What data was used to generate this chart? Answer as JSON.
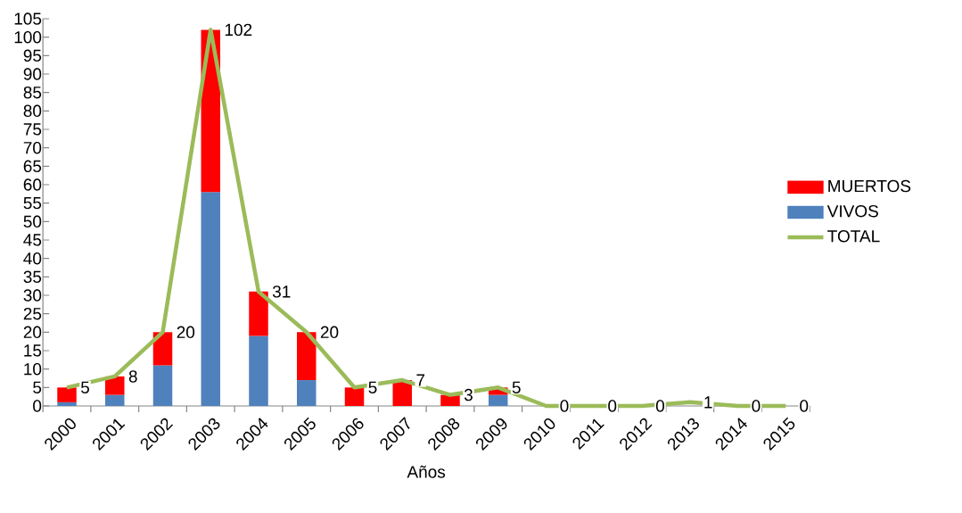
{
  "chart_data": {
    "type": "bar",
    "stacked": true,
    "xlabel": "Años",
    "categories": [
      "2000",
      "2001",
      "2002",
      "2003",
      "2004",
      "2005",
      "2006",
      "2007",
      "2008",
      "2009",
      "2010",
      "2011",
      "2012",
      "2013",
      "2014",
      "2015"
    ],
    "series": [
      {
        "name": "VIVOS",
        "color": "#4f81bd",
        "values": [
          1,
          3,
          11,
          58,
          19,
          7,
          0,
          0,
          0,
          3,
          0,
          0,
          0,
          0,
          0,
          0
        ]
      },
      {
        "name": "MUERTOS",
        "color": "#ff0000",
        "values": [
          4,
          5,
          9,
          44,
          12,
          13,
          5,
          7,
          3,
          2,
          0,
          0,
          0,
          null,
          0,
          0
        ]
      },
      {
        "name": "TOTAL",
        "type": "line",
        "color": "#9bbb59",
        "values": [
          5,
          8,
          20,
          102,
          31,
          20,
          5,
          7,
          3,
          5,
          0,
          0,
          0,
          1,
          0,
          0
        ],
        "value_labels": [
          "5",
          "8",
          "20",
          "102",
          "31",
          "20",
          "5",
          "7",
          "3",
          "5",
          "0",
          "0",
          "0",
          "1",
          "0",
          "0"
        ]
      }
    ],
    "ylim": [
      0,
      105
    ],
    "yticks": [
      0,
      5,
      10,
      15,
      20,
      25,
      30,
      35,
      40,
      45,
      50,
      55,
      60,
      65,
      70,
      75,
      80,
      85,
      90,
      95,
      100,
      105
    ],
    "legend": "right",
    "grid": false,
    "marker": "none"
  }
}
